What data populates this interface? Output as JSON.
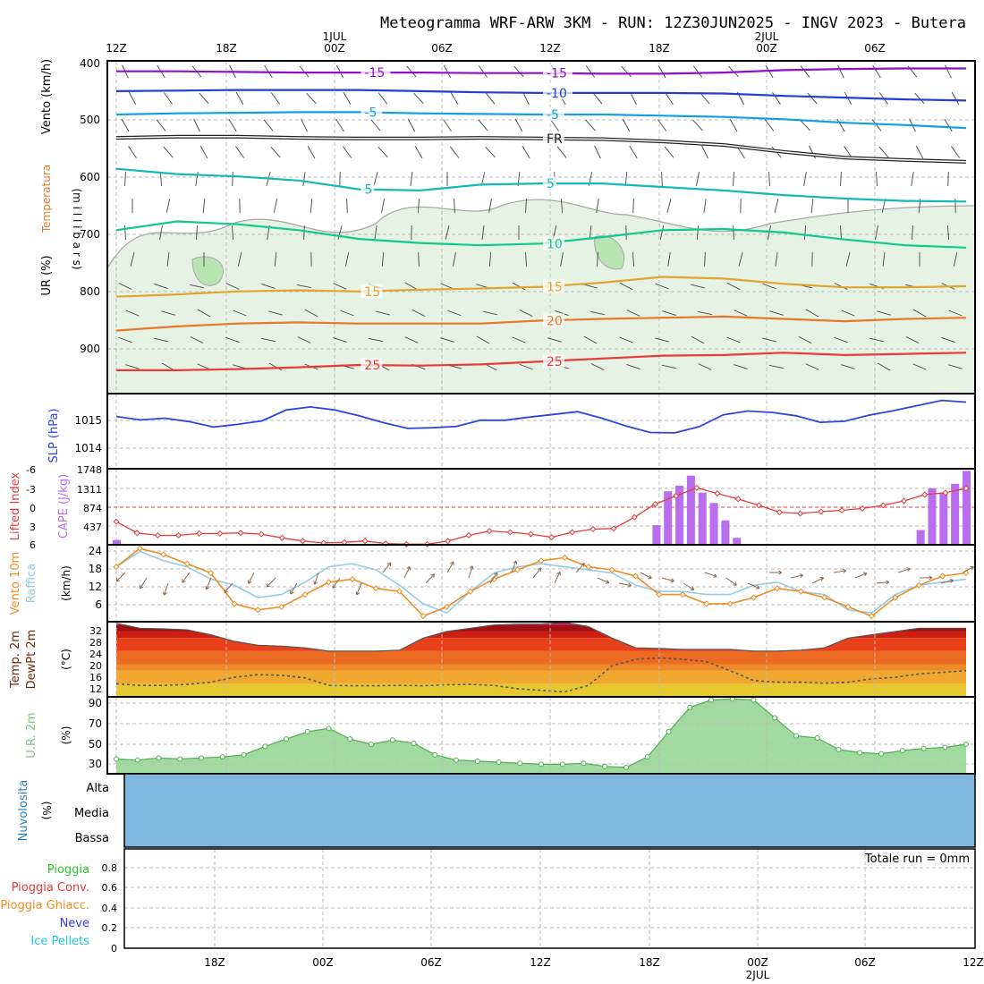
{
  "title": "Meteogramma WRF-ARW 3KM - RUN: 12Z30JUN2025 - INGV 2023 - Butera",
  "top_time_labels": [
    "12Z",
    "18Z",
    "00Z",
    "06Z",
    "12Z",
    "18Z",
    "00Z",
    "06Z"
  ],
  "top_date_labels": [
    "1JUL",
    "2JUL"
  ],
  "bottom_time_labels": [
    "18Z",
    "00Z",
    "06Z",
    "12Z",
    "18Z",
    "00Z",
    "06Z",
    "12Z"
  ],
  "bottom_date_label": "2JUL",
  "total_run_label": "Totale run = 0mm",
  "colors": {
    "minus15": "#8e10c8",
    "minus10": "#1f3fd8",
    "minus5": "#139ee6",
    "freezing": "#222222",
    "plus5": "#14b8b8",
    "plus10": "#10c890",
    "plus15": "#e0a530",
    "plus20": "#e8782a",
    "plus25": "#e83a3a",
    "humidity_fill": "#e6f2e4",
    "slp": "#2a46e0",
    "lifted_index": "#e83a3a",
    "cape": "#b96ef0",
    "wind10m": "#f08c20",
    "gust": "#92cde8",
    "cloud": "#7fb7dc",
    "rh2m": "#7cc97c"
  },
  "chart_data": [
    {
      "type": "line",
      "panel": "upper-air",
      "ylabel_vento": "Vento (km/h)",
      "ylabel_temp": "Temperatura",
      "ylabel_ur": "UR (%)",
      "ylabel_pressure": "(m i l l i b a r s)",
      "y_ticks": [
        "400",
        "500",
        "600",
        "700",
        "800",
        "900"
      ],
      "ylim": [
        970,
        400
      ],
      "isotherms": [
        {
          "label": "-15",
          "values": [
            418,
            418,
            419,
            420,
            420,
            420,
            421,
            421,
            422,
            422,
            420,
            416,
            414,
            413,
            413
          ]
        },
        {
          "label": "-10",
          "values": [
            452,
            451,
            450,
            450,
            450,
            452,
            454,
            455,
            455,
            455,
            456,
            460,
            463,
            466,
            468
          ]
        },
        {
          "label": "-5",
          "values": [
            492,
            490,
            489,
            488,
            488,
            490,
            491,
            492,
            492,
            494,
            496,
            500,
            506,
            510,
            515
          ]
        },
        {
          "label": "FR",
          "values": [
            532,
            530,
            530,
            532,
            533,
            533,
            532,
            533,
            534,
            538,
            544,
            556,
            566,
            570,
            573
          ]
        },
        {
          "label": "5",
          "values": [
            585,
            594,
            598,
            605,
            620,
            622,
            612,
            610,
            610,
            616,
            622,
            630,
            636,
            640,
            641
          ]
        },
        {
          "label": "10",
          "values": [
            690,
            675,
            680,
            690,
            705,
            712,
            716,
            713,
            702,
            690,
            688,
            694,
            706,
            716,
            720
          ]
        },
        {
          "label": "15",
          "values": [
            804,
            800,
            795,
            793,
            795,
            792,
            790,
            787,
            780,
            770,
            773,
            782,
            788,
            788,
            786
          ]
        },
        {
          "label": "20",
          "values": [
            862,
            855,
            850,
            848,
            850,
            850,
            850,
            845,
            842,
            840,
            838,
            842,
            846,
            842,
            840
          ]
        },
        {
          "label": "25",
          "values": [
            930,
            930,
            928,
            925,
            921,
            922,
            920,
            915,
            910,
            905,
            904,
            900,
            904,
            902,
            900
          ]
        }
      ]
    },
    {
      "type": "line",
      "panel": "slp",
      "ylabel": "SLP (hPa)",
      "y_ticks": [
        "1015",
        "1014"
      ],
      "ylim": [
        1013.4,
        1015.6
      ],
      "values": [
        1014.93,
        1014.83,
        1014.88,
        1014.78,
        1014.62,
        1014.7,
        1014.8,
        1015.12,
        1015.21,
        1015.12,
        1014.95,
        1014.75,
        1014.58,
        1014.6,
        1014.64,
        1014.82,
        1014.82,
        1014.91,
        1014.99,
        1015.07,
        1014.88,
        1014.65,
        1014.46,
        1014.45,
        1014.63,
        1014.98,
        1015.09,
        1015.05,
        1014.95,
        1014.76,
        1014.79,
        1014.97,
        1015.1,
        1015.25,
        1015.4,
        1015.35
      ]
    },
    {
      "type": "bar",
      "panel": "cape-li",
      "ylabel_li": "Lifted Index",
      "ylabel_cape": "CAPE (J/kg)",
      "li_ticks": [
        "-6",
        "-3",
        "0",
        "3",
        "6"
      ],
      "cape_ticks": [
        "1748",
        "1311",
        "874",
        "437"
      ],
      "cape_values": [
        110,
        0,
        0,
        0,
        0,
        0,
        0,
        0,
        0,
        0,
        0,
        0,
        0,
        0,
        0,
        0,
        0,
        0,
        0,
        0,
        0,
        0,
        0,
        0,
        0,
        0,
        0,
        0,
        0,
        0,
        0,
        0,
        0,
        0,
        0,
        0,
        0,
        0,
        0,
        0,
        0,
        0,
        0,
        0,
        0,
        0,
        20,
        450,
        1230,
        1360,
        1590,
        1200,
        960,
        560,
        160,
        0,
        0,
        0,
        0,
        0,
        0,
        0,
        0,
        0,
        0,
        0,
        0,
        0,
        0,
        0,
        340,
        1300,
        1200,
        1400,
        1700
      ],
      "li_values": [
        2.3,
        4.1,
        4.5,
        4.5,
        4.2,
        4.2,
        4.1,
        4.3,
        4.9,
        5.4,
        5.7,
        5.6,
        5.4,
        5.8,
        5.9,
        5.9,
        5.4,
        4.5,
        3.8,
        4.0,
        4.3,
        4.8,
        4.0,
        3.5,
        3.4,
        1.6,
        -0.5,
        -1.8,
        -3.1,
        -2.2,
        -1.3,
        -0.3,
        0.8,
        1.0,
        0.7,
        0.5,
        0.2,
        -0.3,
        -1.0,
        -2.0,
        -2.3,
        -3.0
      ]
    },
    {
      "type": "line",
      "panel": "wind10m",
      "ylabel_wind": "Vento 10m",
      "ylabel_gust": "Raffica",
      "ylabel_unit": "(km/h)",
      "y_ticks": [
        "24",
        "18",
        "12",
        "6"
      ],
      "ylim": [
        0,
        25
      ],
      "wind_values": [
        19,
        25,
        23,
        20,
        17,
        7,
        5,
        6,
        10,
        14,
        15,
        12,
        11,
        3,
        6,
        11,
        15,
        18,
        21,
        22,
        19,
        18,
        16,
        10,
        10,
        7,
        7,
        9,
        12,
        11,
        9,
        6,
        3,
        9,
        13,
        16,
        17
      ],
      "gust_values": [
        19,
        24,
        21,
        19,
        15,
        13,
        9,
        10,
        14,
        19,
        20,
        18,
        13,
        7,
        4,
        11,
        17,
        19,
        20,
        19,
        18,
        17,
        13,
        11,
        11,
        10,
        10,
        13,
        14,
        11,
        10,
        5,
        4,
        10,
        13,
        14,
        15
      ]
    },
    {
      "type": "area",
      "panel": "temp2m",
      "ylabel_temp": "Temp. 2m",
      "ylabel_dew": "DewPt 2m",
      "ylabel_unit": "(°C)",
      "y_ticks": [
        "32",
        "28",
        "24",
        "20",
        "16",
        "12"
      ],
      "ylim": [
        10,
        33
      ],
      "temp_values": [
        32.5,
        31,
        30.8,
        30.5,
        29,
        27,
        25.8,
        25.5,
        25,
        24,
        24,
        24,
        24.3,
        28,
        30,
        31,
        32,
        32.3,
        32.3,
        32.8,
        31.5,
        28,
        25,
        24.8,
        24.5,
        24.5,
        24.5,
        24,
        24,
        24.3,
        25,
        28,
        29,
        30,
        31,
        31,
        31
      ],
      "dew_values": [
        14,
        13.5,
        13.5,
        13.8,
        14.5,
        16,
        16.8,
        16.6,
        15.8,
        13.5,
        13.4,
        13.4,
        13.5,
        13.4,
        13.7,
        13.8,
        13.5,
        12.5,
        12,
        11.5,
        13.5,
        19.5,
        21.5,
        21.9,
        21.5,
        20.8,
        18,
        15,
        14.5,
        14.5,
        14.2,
        14.5,
        15.5,
        16,
        17,
        17.5,
        18
      ]
    },
    {
      "type": "area",
      "panel": "rh2m",
      "ylabel": "U.R. 2m",
      "ylabel_unit": "(%)",
      "y_ticks": [
        "90",
        "70",
        "50",
        "30"
      ],
      "ylim": [
        22,
        95
      ],
      "values": [
        36,
        35,
        37,
        36,
        37,
        38,
        40,
        48,
        55,
        62,
        65,
        55,
        50,
        54,
        51,
        40,
        35,
        34,
        33,
        32,
        31,
        31,
        32,
        29,
        28,
        38,
        62,
        85,
        92,
        93,
        92,
        75,
        58,
        56,
        45,
        42,
        41,
        44,
        46,
        47,
        50
      ]
    },
    {
      "type": "area",
      "panel": "clouds",
      "ylabel": "Nuvolosita",
      "ylabel_unit": "(%)",
      "levels": [
        "Alta",
        "Media",
        "Bassa"
      ]
    },
    {
      "type": "bar",
      "panel": "precipitation",
      "legend": [
        "Pioggia",
        "Pioggia Conv.",
        "Pioggia Ghiacc.",
        "Neve",
        "Ice Pellets"
      ],
      "y_ticks": [
        "0.8",
        "0.6",
        "0.4",
        "0.2",
        "0"
      ],
      "ylim": [
        0,
        1
      ]
    }
  ]
}
